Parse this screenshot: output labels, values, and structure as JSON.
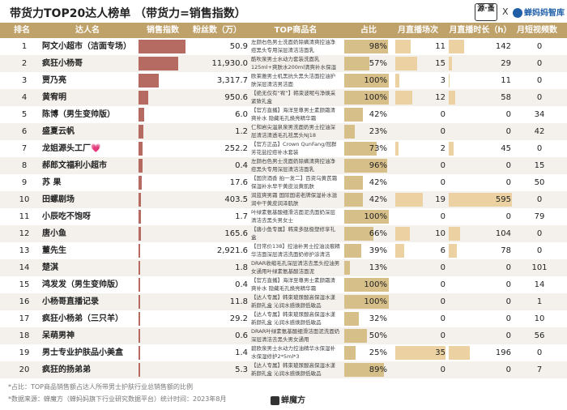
{
  "title": "带货力TOP20达人榜单 （带货力=销售指数）",
  "logos": {
    "left_text": "源·蚤",
    "cross": "X",
    "right_text": "蝉妈妈智库"
  },
  "colors": {
    "header": "#bfa16a",
    "sales_bar": "#b56a62",
    "share_bar": "#d7bf8a",
    "live_bar": "#ecd2a2"
  },
  "chart_data": {
    "type": "table",
    "columns": [
      "排名",
      "达人名",
      "销售指数",
      "粉丝数（万）",
      "TOP商品名",
      "占比",
      "月直播场次",
      "月直播时长（h）",
      "月短视频数"
    ],
    "rows": [
      {
        "rank": "1",
        "name": "阿文小超市（洁面专场）",
        "sales_index": 1.0,
        "fans": "50.9",
        "product": "左颜右色男士洗面奶除螨清爽控油净痘黑头专用深层清洁洁面乳",
        "share": 98,
        "share_label": "98%",
        "live_sessions": 11,
        "live_hours": 142,
        "videos": "0"
      },
      {
        "rank": "2",
        "name": "疯狂小杨哥",
        "sales_index": 0.84,
        "fans": "11,930.0",
        "product": "酷吹泉男士水动力套装洗面乳125ml+爽肤水200ml清爽补水保湿",
        "share": 57,
        "share_label": "57%",
        "live_sessions": 15,
        "live_hours": 29,
        "videos": "0"
      },
      {
        "rank": "3",
        "name": "贾乃亮",
        "sales_index": 0.43,
        "fans": "3,317.7",
        "product": "欧莱雅男士机黑抗头黑头洁面控油护肤深层清洁男洁面",
        "share": 100,
        "share_label": "100%",
        "live_sessions": 3,
        "live_hours": 11,
        "videos": "0"
      },
      {
        "rank": "4",
        "name": "黄宥明",
        "sales_index": 0.21,
        "fans": "950.6",
        "product": "【绝无仅有“宥”】韩束波呢与净焕采紧致礼盒",
        "share": 100,
        "share_label": "100%",
        "live_sessions": 12,
        "live_hours": 58,
        "videos": "0"
      },
      {
        "rank": "5",
        "name": "陈博（男生变帅版）",
        "sales_index": 0.12,
        "fans": "6.0",
        "product": "【官方直播】海洋至尊男士素颜霜清爽补水 隐藏毛孔焕亮精华霜",
        "share": 42,
        "share_label": "42%",
        "live_sessions": 0,
        "live_hours": 0,
        "videos": "34"
      },
      {
        "rank": "6",
        "name": "盛夏云帆",
        "sales_index": 0.1,
        "fans": "1.2",
        "product": "仁和岩尖温泉泉男洗面奶男士控油深层清洁清透毛孔祛黑头NJ18",
        "share": 23,
        "share_label": "23%",
        "live_sessions": 0,
        "live_hours": 0,
        "videos": "42"
      },
      {
        "rank": "7",
        "name": "龙姐源头工厂💗",
        "sales_index": 0.09,
        "fans": "252.2",
        "product": "【官方正品】Crown QunFang/冠群芳花盐控痘补水套装",
        "share": 73,
        "share_label": "73%",
        "live_sessions": 2,
        "live_hours": 45,
        "videos": "0"
      },
      {
        "rank": "8",
        "name": "郝郎文福利小超市",
        "sales_index": 0.08,
        "fans": "0.4",
        "product": "左颜右色男士洗面奶除螨清爽控油净痘黑头专用深层清洁洁面乳",
        "share": 96,
        "share_label": "96%",
        "live_sessions": 0,
        "live_hours": 0,
        "videos": "15"
      },
      {
        "rank": "9",
        "name": "苏  果",
        "sales_index": 0.07,
        "fans": "17.6",
        "product": "【国货酒香 拍一发二】百资乌黄芪霜 保湿补水早干黄皮淡黄肌肤",
        "share": 42,
        "share_label": "42%",
        "live_sessions": 0,
        "live_hours": 0,
        "videos": "50"
      },
      {
        "rank": "10",
        "name": "田螺剧场",
        "sales_index": 0.06,
        "fans": "403.5",
        "product": "润蓝爽男霜 国际国诺老牌保湿补水滋润中干黄皮润泽肌肤",
        "share": 42,
        "share_label": "42%",
        "live_sessions": 19,
        "live_hours": 595,
        "videos": "0"
      },
      {
        "rank": "11",
        "name": "小辰吃不饱呀",
        "sales_index": 0.05,
        "fans": "1.7",
        "product": "叶绿素氨基酸细滑洁面泥洗面奶深层清洁去黑头男女士",
        "share": 100,
        "share_label": "100%",
        "live_sessions": 0,
        "live_hours": 0,
        "videos": "79"
      },
      {
        "rank": "12",
        "name": "唐小鱼",
        "sales_index": 0.045,
        "fans": "165.6",
        "product": "【唐小鱼专属】韩束多肽极塑修享礼盒",
        "share": 66,
        "share_label": "66%",
        "live_sessions": 10,
        "live_hours": 104,
        "videos": "0"
      },
      {
        "rank": "13",
        "name": "董先生",
        "sales_index": 0.04,
        "fans": "2,921.6",
        "product": "【日常价138】控油补男士控油淡痕精华洁面深层清洁洗面奶修护涂清洁",
        "share": 39,
        "share_label": "39%",
        "live_sessions": 6,
        "live_hours": 78,
        "videos": "0"
      },
      {
        "rank": "14",
        "name": "楚淇",
        "sales_index": 0.035,
        "fans": "1.8",
        "product": "DRAR收缩毛孔深层清洁去黑头控油男女通用叶绿素氨基酸洁面泥",
        "share": 13,
        "share_label": "13%",
        "live_sessions": 0,
        "live_hours": 0,
        "videos": "101"
      },
      {
        "rank": "15",
        "name": "鸿发发（男生变帅版）",
        "sales_index": 0.03,
        "fans": "0.4",
        "product": "【官方直播】海洋至尊男士素颜霜清爽补水 隐藏毛孔焕亮精华霜",
        "share": 100,
        "share_label": "100%",
        "live_sessions": 0,
        "live_hours": 0,
        "videos": "14"
      },
      {
        "rank": "16",
        "name": "小杨哥直播记录",
        "sales_index": 0.028,
        "fans": "11.8",
        "product": "【达人专属】韩束玻尿酸高保湿水漾新颜礼盒 沁润水感焕颜低敏品",
        "share": 100,
        "share_label": "100%",
        "live_sessions": 0,
        "live_hours": 0,
        "videos": "1"
      },
      {
        "rank": "17",
        "name": "疯狂小杨弟（三只羊）",
        "sales_index": 0.026,
        "fans": "29.2",
        "product": "【达人专属】韩束玻尿酸高保湿水漾新颜礼盒 沁润水感焕颜低敏品",
        "share": 32,
        "share_label": "32%",
        "live_sessions": 0,
        "live_hours": 0,
        "videos": "10"
      },
      {
        "rank": "18",
        "name": "呆萌男神",
        "sales_index": 0.024,
        "fans": "0.6",
        "product": "DRAR叶绿素氨基酸细滑洁面泥洗面奶深层清洁去黑头男女通用",
        "share": 50,
        "share_label": "50%",
        "live_sessions": 0,
        "live_hours": 0,
        "videos": "56"
      },
      {
        "rank": "19",
        "name": "男士专业护肤品小美盒",
        "sales_index": 0.022,
        "fans": "1.4",
        "product": "碧欧泉男士水动力控油精华水保湿补水保湿修护2*5ml*3",
        "share": 25,
        "share_label": "25%",
        "live_sessions": 35,
        "live_hours": 196,
        "videos": "0"
      },
      {
        "rank": "20",
        "name": "疯狂的扬弟弟",
        "sales_index": 0.02,
        "fans": "5.3",
        "product": "【达人专属】韩束玻尿酸高保湿水漾新颜礼盒 沁润水感焕颜低敏品",
        "share": 89,
        "share_label": "89%",
        "live_sessions": 0,
        "live_hours": 0,
        "videos": "7"
      }
    ]
  },
  "footnotes": {
    "note": "*占比：TOP商品销售额占达人所带男士护肤行业总销售额的比例",
    "source": "*数据来源：蝉魔方（蝉妈妈旗下行业研究数据平台）统计时间：2023年8月",
    "brand": "蝉魔方"
  }
}
